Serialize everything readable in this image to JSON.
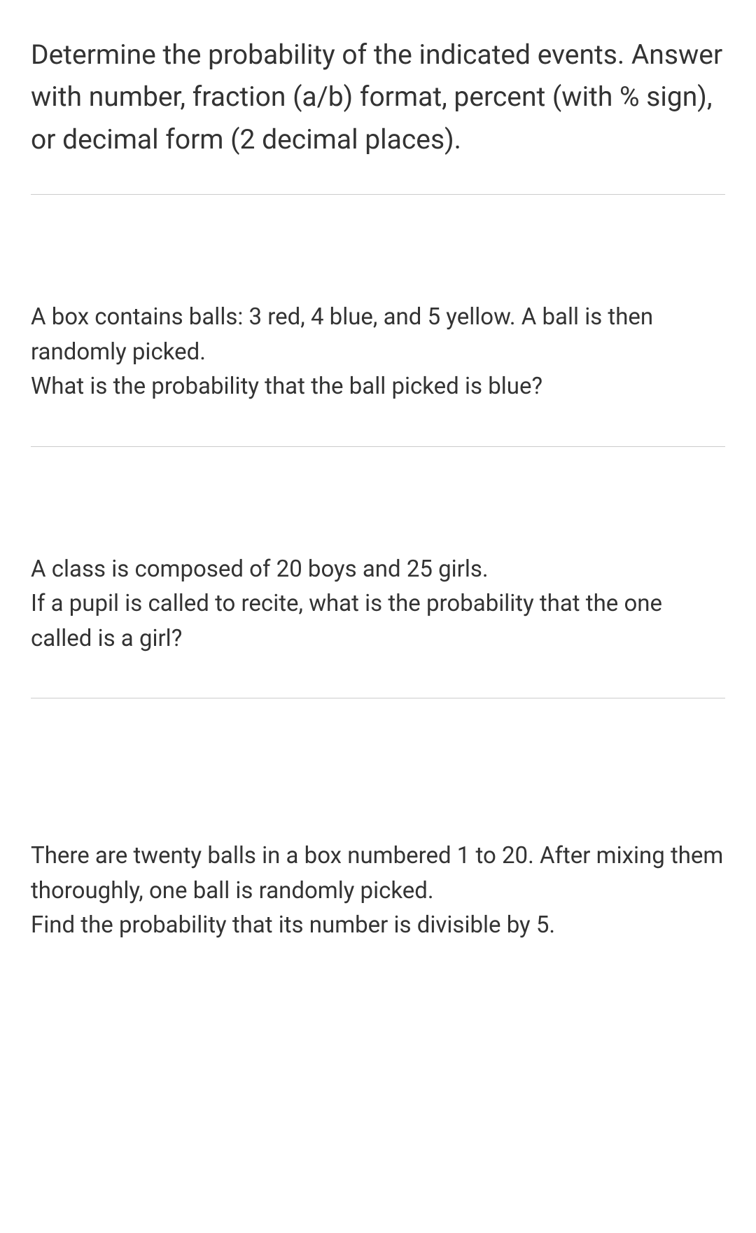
{
  "intro": "Determine the probability of the indicated events. Answer with number, fraction (a/b) format, percent (with % sign), or decimal form (2 decimal places).",
  "questions": [
    {
      "setup": "A box contains balls: 3 red, 4 blue, and 5 yellow. A ball is then randomly picked.",
      "ask": "What is the probability that the ball picked is blue?"
    },
    {
      "setup": "A class is composed of 20 boys and 25 girls.",
      "ask": "If a pupil is called to recite, what is the probability that the one called is a girl?"
    },
    {
      "setup": "There are twenty balls in a box numbered 1 to 20. After mixing them thoroughly, one ball is randomly picked.",
      "ask": "Find the probability that its number is divisible by 5."
    }
  ],
  "colors": {
    "text": "#333333",
    "background": "#ffffff",
    "divider": "#cccccc"
  },
  "typography": {
    "intro_fontsize": 39,
    "question_fontsize": 33,
    "font_family": "-apple-system, Segoe UI, Roboto, Helvetica Neue, Arial, sans-serif"
  }
}
